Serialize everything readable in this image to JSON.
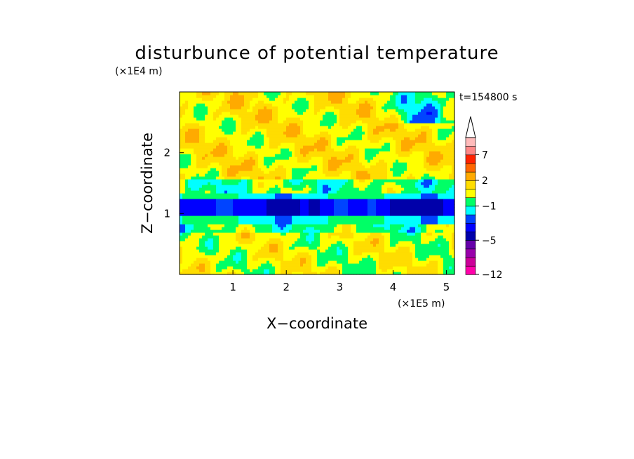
{
  "chart_data": {
    "type": "heatmap",
    "title": "disturbunce of potential temperature",
    "xlabel": "X−coordinate",
    "ylabel": "Z−coordinate",
    "x_unit": "(×1E5 m)",
    "y_unit": "(×1E4 m)",
    "time_label": "t=154800 s",
    "xlim": [
      0,
      5.15
    ],
    "ylim": [
      0,
      3.0
    ],
    "x_ticks": [
      1,
      2,
      3,
      4,
      5
    ],
    "y_ticks": [
      1,
      2
    ],
    "colorbar": {
      "levels": [
        -12,
        -10,
        -8,
        -6,
        -5,
        -4,
        -3,
        -2,
        -1,
        0,
        1,
        2,
        3,
        5,
        7,
        9,
        11
      ],
      "tick_labels": [
        "−12",
        "−5",
        "−1",
        "2",
        "7"
      ],
      "tick_values": [
        -12,
        -5,
        -1,
        2,
        7
      ],
      "colors": [
        "#ff00aa",
        "#cc0099",
        "#9900aa",
        "#6600aa",
        "#0000aa",
        "#0000ff",
        "#0044ff",
        "#00ffff",
        "#00ff66",
        "#ffff00",
        "#ffdd00",
        "#ffaa00",
        "#ff6600",
        "#ff2200",
        "#ff8888",
        "#ffbbbb"
      ],
      "extend": "max"
    },
    "bands": [
      {
        "z_range": [
          0.0,
          0.7
        ],
        "value": 0.5,
        "description": "lower layer mostly 0 to 1"
      },
      {
        "z_range": [
          0.7,
          0.85
        ],
        "value": -0.5,
        "description": "green transition"
      },
      {
        "z_range": [
          0.85,
          1.35
        ],
        "value": -1.5,
        "description": "cyan/blue negative band"
      },
      {
        "z_range": [
          1.35,
          1.55
        ],
        "value": -0.5,
        "description": "green transition"
      },
      {
        "z_range": [
          1.55,
          3.0
        ],
        "value": 1.0,
        "description": "upper layer mixed positive"
      }
    ]
  }
}
